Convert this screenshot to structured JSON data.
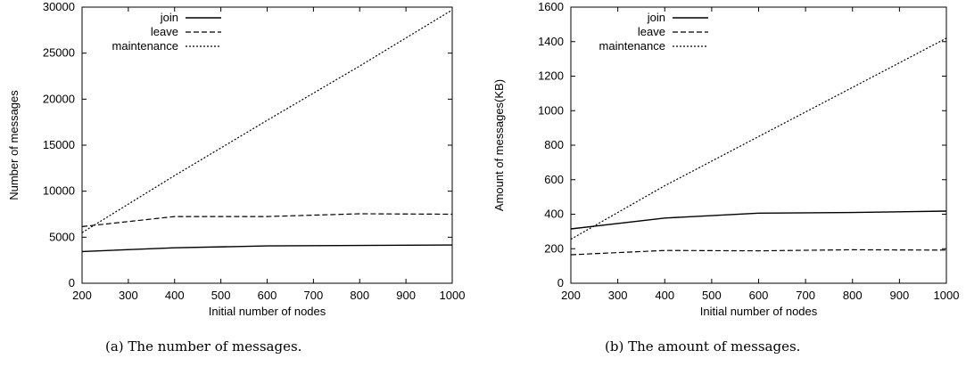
{
  "figure": {
    "captions": [
      "(a)  The number of messages.",
      "(b)  The amount of messages."
    ]
  },
  "chart_data": [
    {
      "type": "line",
      "caption": "(a)  The number of messages.",
      "xlabel": "Initial number of nodes",
      "ylabel": "Number of messages",
      "xlim": [
        200,
        1000
      ],
      "ylim": [
        0,
        30000
      ],
      "xticks": [
        200,
        300,
        400,
        500,
        600,
        700,
        800,
        900,
        1000
      ],
      "yticks": [
        0,
        5000,
        10000,
        15000,
        20000,
        25000,
        30000
      ],
      "legend_position": "top-left",
      "grid": false,
      "x": [
        200,
        400,
        600,
        800,
        1000
      ],
      "series": [
        {
          "name": "join",
          "style": "solid",
          "values": [
            3450,
            3850,
            4050,
            4100,
            4150
          ]
        },
        {
          "name": "leave",
          "style": "dashed",
          "values": [
            6150,
            7250,
            7250,
            7550,
            7500
          ]
        },
        {
          "name": "maintenance",
          "style": "dotted",
          "values": [
            5500,
            11700,
            17700,
            23600,
            29700
          ]
        }
      ]
    },
    {
      "type": "line",
      "caption": "(b)  The amount of messages.",
      "xlabel": "Initial number of nodes",
      "ylabel": "Amount of messages(KB)",
      "xlim": [
        200,
        1000
      ],
      "ylim": [
        0,
        1600
      ],
      "xticks": [
        200,
        300,
        400,
        500,
        600,
        700,
        800,
        900,
        1000
      ],
      "yticks": [
        0,
        200,
        400,
        600,
        800,
        1000,
        1200,
        1400,
        1600
      ],
      "legend_position": "top-left",
      "grid": false,
      "x": [
        200,
        400,
        600,
        800,
        1000
      ],
      "series": [
        {
          "name": "join",
          "style": "solid",
          "values": [
            315,
            378,
            406,
            410,
            418
          ]
        },
        {
          "name": "leave",
          "style": "dashed",
          "values": [
            165,
            190,
            188,
            194,
            192
          ]
        },
        {
          "name": "maintenance",
          "style": "dotted",
          "values": [
            255,
            565,
            850,
            1135,
            1420
          ]
        }
      ]
    }
  ]
}
